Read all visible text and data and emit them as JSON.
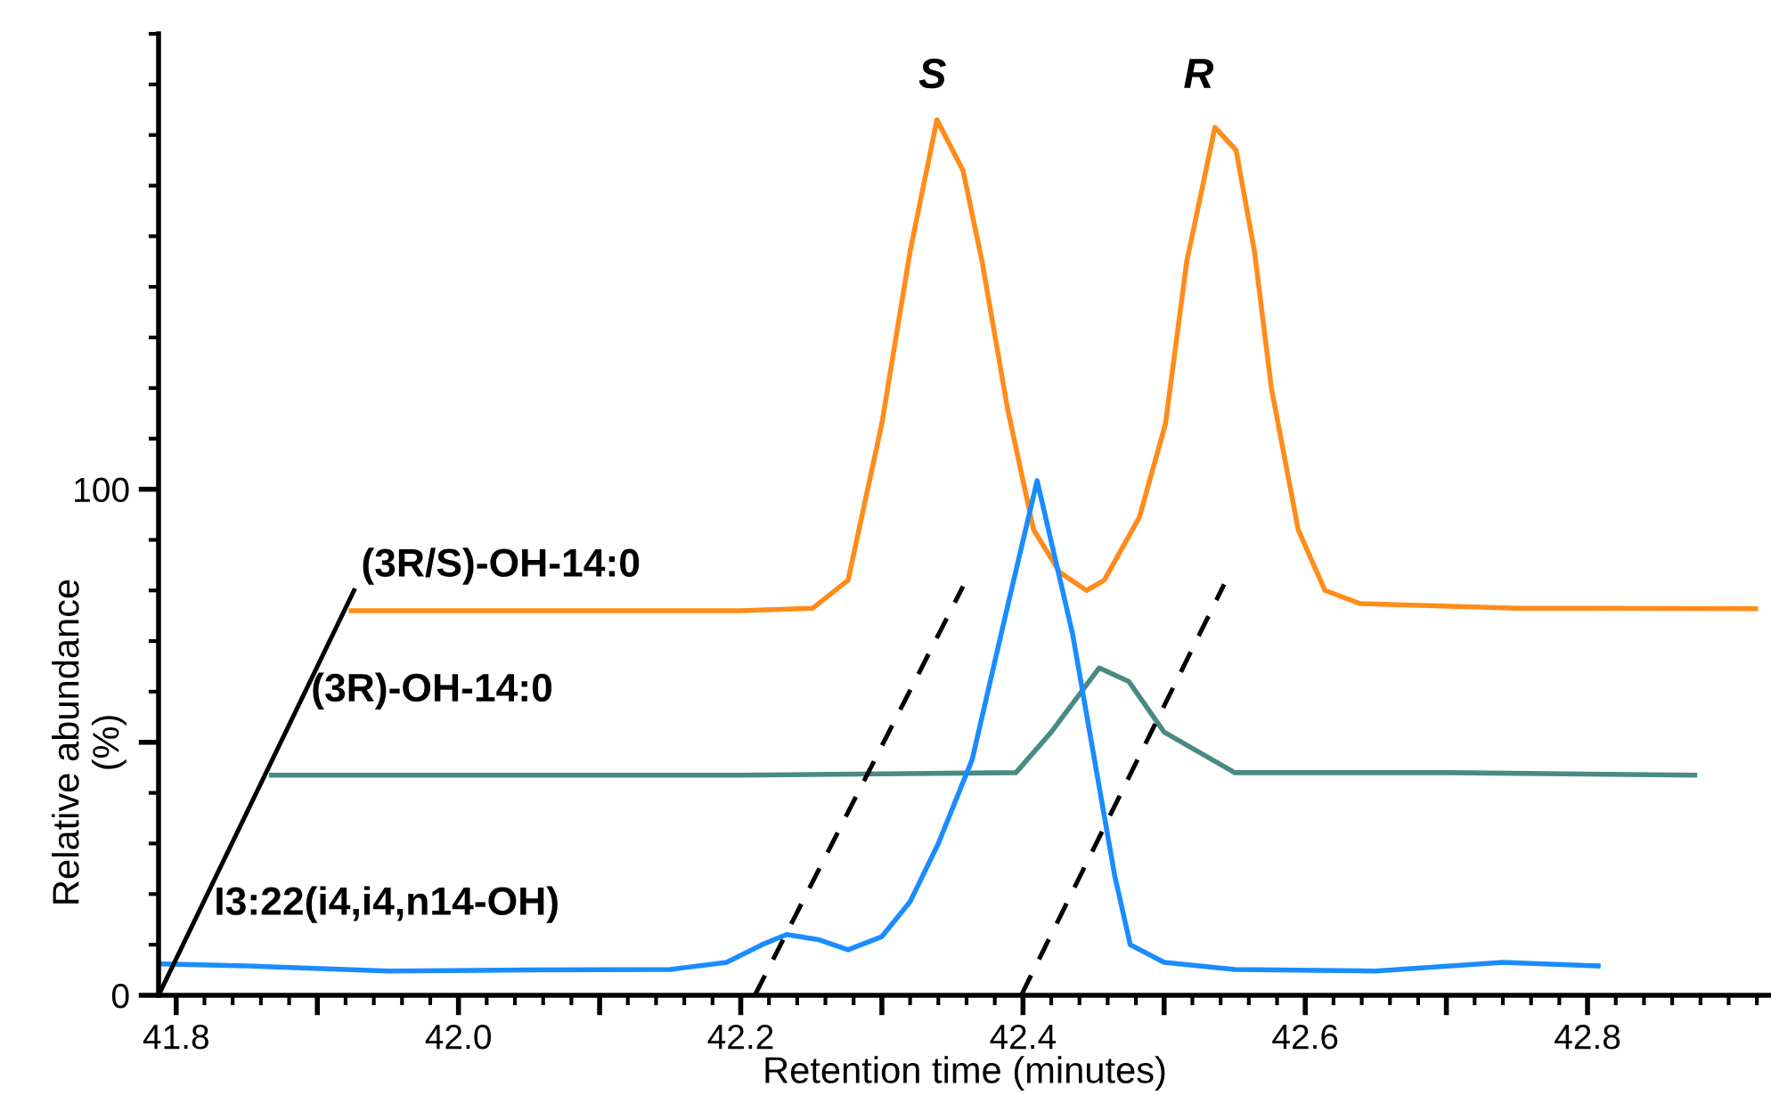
{
  "chart_data": {
    "type": "line",
    "xlabel": "Retention time (minutes)",
    "ylabel": "Relative abundance\n(%)",
    "xlim": [
      41.7875,
      42.93
    ],
    "ylim": [
      0,
      190
    ],
    "xticks": [
      {
        "value": 41.8,
        "label": "41.8"
      },
      {
        "value": 41.9,
        "label": null
      },
      {
        "value": 42.0,
        "label": "42.0"
      },
      {
        "value": 42.1,
        "label": null
      },
      {
        "value": 42.2,
        "label": "42.2"
      },
      {
        "value": 42.3,
        "label": null
      },
      {
        "value": 42.4,
        "label": "42.4"
      },
      {
        "value": 42.5,
        "label": null
      },
      {
        "value": 42.6,
        "label": "42.6"
      },
      {
        "value": 42.7,
        "label": null
      },
      {
        "value": 42.8,
        "label": "42.8"
      }
    ],
    "yticks": [
      0,
      {
        "value": 50,
        "label": null
      },
      100
    ],
    "grid": false,
    "legend": false,
    "marker": "none",
    "series": [
      {
        "name": "(3R/S)-OH-14:0",
        "color": "#ff8c1a",
        "x": [
          41.924,
          42.0,
          42.1,
          42.2,
          42.251,
          42.276,
          42.3,
          42.32,
          42.339,
          42.3575,
          42.371,
          42.389,
          42.4075,
          42.426,
          42.445,
          42.4575,
          42.4825,
          42.501,
          42.516,
          42.536,
          42.551,
          42.564,
          42.576,
          42.595,
          42.614,
          42.639,
          42.75,
          42.919
        ],
        "values": [
          76,
          76,
          76,
          76,
          76.5,
          82,
          113,
          147,
          173,
          163,
          145,
          116,
          92,
          83.6,
          80,
          82,
          94.5,
          113,
          145,
          171.5,
          167,
          147,
          120,
          92,
          80,
          77.4,
          76.5,
          76.4
        ]
      },
      {
        "name": "(3R)-OH-14:0",
        "color": "#4a8a85",
        "x": [
          41.8675,
          42.0,
          42.2,
          42.395,
          42.42,
          42.454,
          42.475,
          42.5,
          42.55,
          42.7,
          42.876
        ],
        "values": [
          43.5,
          43.5,
          43.5,
          44,
          52,
          64.7,
          62,
          52,
          44,
          44,
          43.5
        ]
      },
      {
        "name": "I3:22(i4,i4,n14-OH)",
        "color": "#1a8cff",
        "x": [
          41.79,
          41.85,
          41.95,
          42.05,
          42.15,
          42.19,
          42.215,
          42.2325,
          42.255,
          42.276,
          42.3,
          42.32,
          42.34,
          42.364,
          42.39,
          42.41,
          42.435,
          42.45,
          42.465,
          42.476,
          42.5,
          42.55,
          42.65,
          42.74,
          42.8075
        ],
        "values": [
          6.2,
          5.8,
          4.8,
          5,
          5.1,
          6.5,
          10,
          12,
          11,
          9,
          11.6,
          18.5,
          30,
          46.6,
          78,
          101.7,
          71.6,
          47.6,
          23.6,
          10,
          6.5,
          5.1,
          4.8,
          6.5,
          5.8
        ]
      },
      {
        "color": "#000000",
        "line_style": "solid",
        "x": [
          41.7875,
          41.926
        ],
        "values": [
          0,
          80
        ]
      },
      {
        "color": "#000000",
        "line_style": "dashed",
        "x": [
          42.21,
          42.3575
        ],
        "values": [
          0,
          80.8
        ]
      },
      {
        "color": "#000000",
        "line_style": "dashed",
        "x": [
          42.39875,
          42.5425
        ],
        "values": [
          0,
          81.2
        ]
      }
    ],
    "annotations": [
      "S",
      "R"
    ]
  }
}
